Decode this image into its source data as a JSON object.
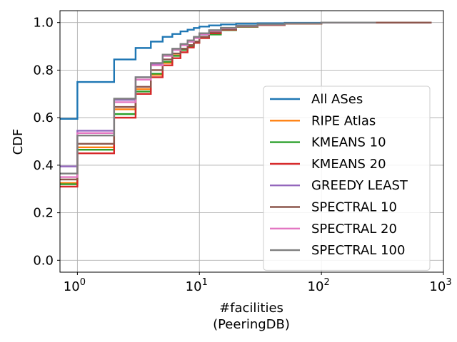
{
  "chart_data": {
    "type": "line",
    "xlabel": "#facilities",
    "xlabel_sub": "(PeeringDB)",
    "ylabel": "CDF",
    "xscale": "log",
    "xlim": [
      0.72,
      1000
    ],
    "ylim": [
      -0.05,
      1.05
    ],
    "grid": true,
    "legend_position": "lower-right",
    "xticks": [
      {
        "value": 1,
        "base": "10",
        "exp": "0"
      },
      {
        "value": 10,
        "base": "10",
        "exp": "1"
      },
      {
        "value": 100,
        "base": "10",
        "exp": "2"
      },
      {
        "value": 1000,
        "base": "10",
        "exp": "3"
      }
    ],
    "yticks": [
      {
        "value": 0.0,
        "label": "0.0"
      },
      {
        "value": 0.2,
        "label": "0.2"
      },
      {
        "value": 0.4,
        "label": "0.4"
      },
      {
        "value": 0.6,
        "label": "0.6"
      },
      {
        "value": 0.8,
        "label": "0.8"
      },
      {
        "value": 1.0,
        "label": "1.0"
      }
    ],
    "series": [
      {
        "name": "All ASes",
        "color": "#1f77b4",
        "x": [
          1,
          2,
          3,
          4,
          5,
          6,
          7,
          8,
          9,
          10,
          12,
          15,
          20,
          30,
          50,
          100,
          280
        ],
        "y": [
          0.595,
          0.75,
          0.845,
          0.893,
          0.92,
          0.94,
          0.952,
          0.963,
          0.97,
          0.977,
          0.983,
          0.988,
          0.992,
          0.995,
          0.997,
          0.999,
          1.0
        ]
      },
      {
        "name": "RIPE Atlas",
        "color": "#ff7f0e",
        "x": [
          1,
          2,
          3,
          4,
          5,
          6,
          7,
          8,
          9,
          10,
          12,
          15,
          20,
          30,
          50,
          100,
          800
        ],
        "y": [
          0.325,
          0.475,
          0.635,
          0.72,
          0.78,
          0.83,
          0.862,
          0.888,
          0.905,
          0.92,
          0.94,
          0.955,
          0.97,
          0.983,
          0.99,
          0.996,
          1.0
        ]
      },
      {
        "name": "KMEANS 10",
        "color": "#2ca02c",
        "x": [
          1,
          2,
          3,
          4,
          5,
          6,
          7,
          8,
          9,
          10,
          12,
          15,
          20,
          30,
          50,
          100,
          800
        ],
        "y": [
          0.32,
          0.465,
          0.615,
          0.71,
          0.785,
          0.835,
          0.86,
          0.885,
          0.9,
          0.915,
          0.935,
          0.95,
          0.968,
          0.982,
          0.99,
          0.996,
          1.0
        ]
      },
      {
        "name": "KMEANS 20",
        "color": "#d62728",
        "x": [
          1,
          2,
          3,
          4,
          5,
          6,
          7,
          8,
          9,
          10,
          12,
          15,
          20,
          30,
          50,
          100,
          800
        ],
        "y": [
          0.31,
          0.45,
          0.6,
          0.7,
          0.77,
          0.82,
          0.85,
          0.875,
          0.895,
          0.915,
          0.935,
          0.955,
          0.97,
          0.983,
          0.99,
          0.996,
          1.0
        ]
      },
      {
        "name": "GREEDY LEAST",
        "color": "#9467bd",
        "x": [
          1,
          2,
          3,
          4,
          5,
          6,
          7,
          8,
          9,
          10,
          12,
          15,
          20,
          30,
          50,
          100,
          800
        ],
        "y": [
          0.395,
          0.545,
          0.675,
          0.77,
          0.825,
          0.86,
          0.885,
          0.905,
          0.92,
          0.935,
          0.95,
          0.965,
          0.975,
          0.985,
          0.992,
          0.997,
          1.0
        ]
      },
      {
        "name": "SPECTRAL 10",
        "color": "#8c564b",
        "x": [
          1,
          2,
          3,
          4,
          5,
          6,
          7,
          8,
          9,
          10,
          12,
          15,
          20,
          30,
          50,
          100,
          800
        ],
        "y": [
          0.34,
          0.49,
          0.645,
          0.73,
          0.8,
          0.845,
          0.87,
          0.89,
          0.905,
          0.92,
          0.94,
          0.96,
          0.972,
          0.984,
          0.991,
          0.996,
          1.0
        ]
      },
      {
        "name": "SPECTRAL 20",
        "color": "#e377c2",
        "x": [
          1,
          2,
          3,
          4,
          5,
          6,
          7,
          8,
          9,
          10,
          12,
          15,
          20,
          30,
          50,
          100,
          280
        ],
        "y": [
          0.35,
          0.535,
          0.665,
          0.76,
          0.82,
          0.86,
          0.885,
          0.905,
          0.92,
          0.935,
          0.952,
          0.965,
          0.976,
          0.986,
          0.992,
          0.997,
          1.0
        ]
      },
      {
        "name": "SPECTRAL 100",
        "color": "#7f7f7f",
        "x": [
          1,
          2,
          3,
          4,
          5,
          6,
          7,
          8,
          9,
          10,
          12,
          15,
          20,
          30,
          50,
          100,
          280
        ],
        "y": [
          0.365,
          0.525,
          0.68,
          0.77,
          0.83,
          0.865,
          0.89,
          0.91,
          0.925,
          0.94,
          0.955,
          0.968,
          0.978,
          0.987,
          0.993,
          0.997,
          1.0
        ]
      }
    ]
  }
}
